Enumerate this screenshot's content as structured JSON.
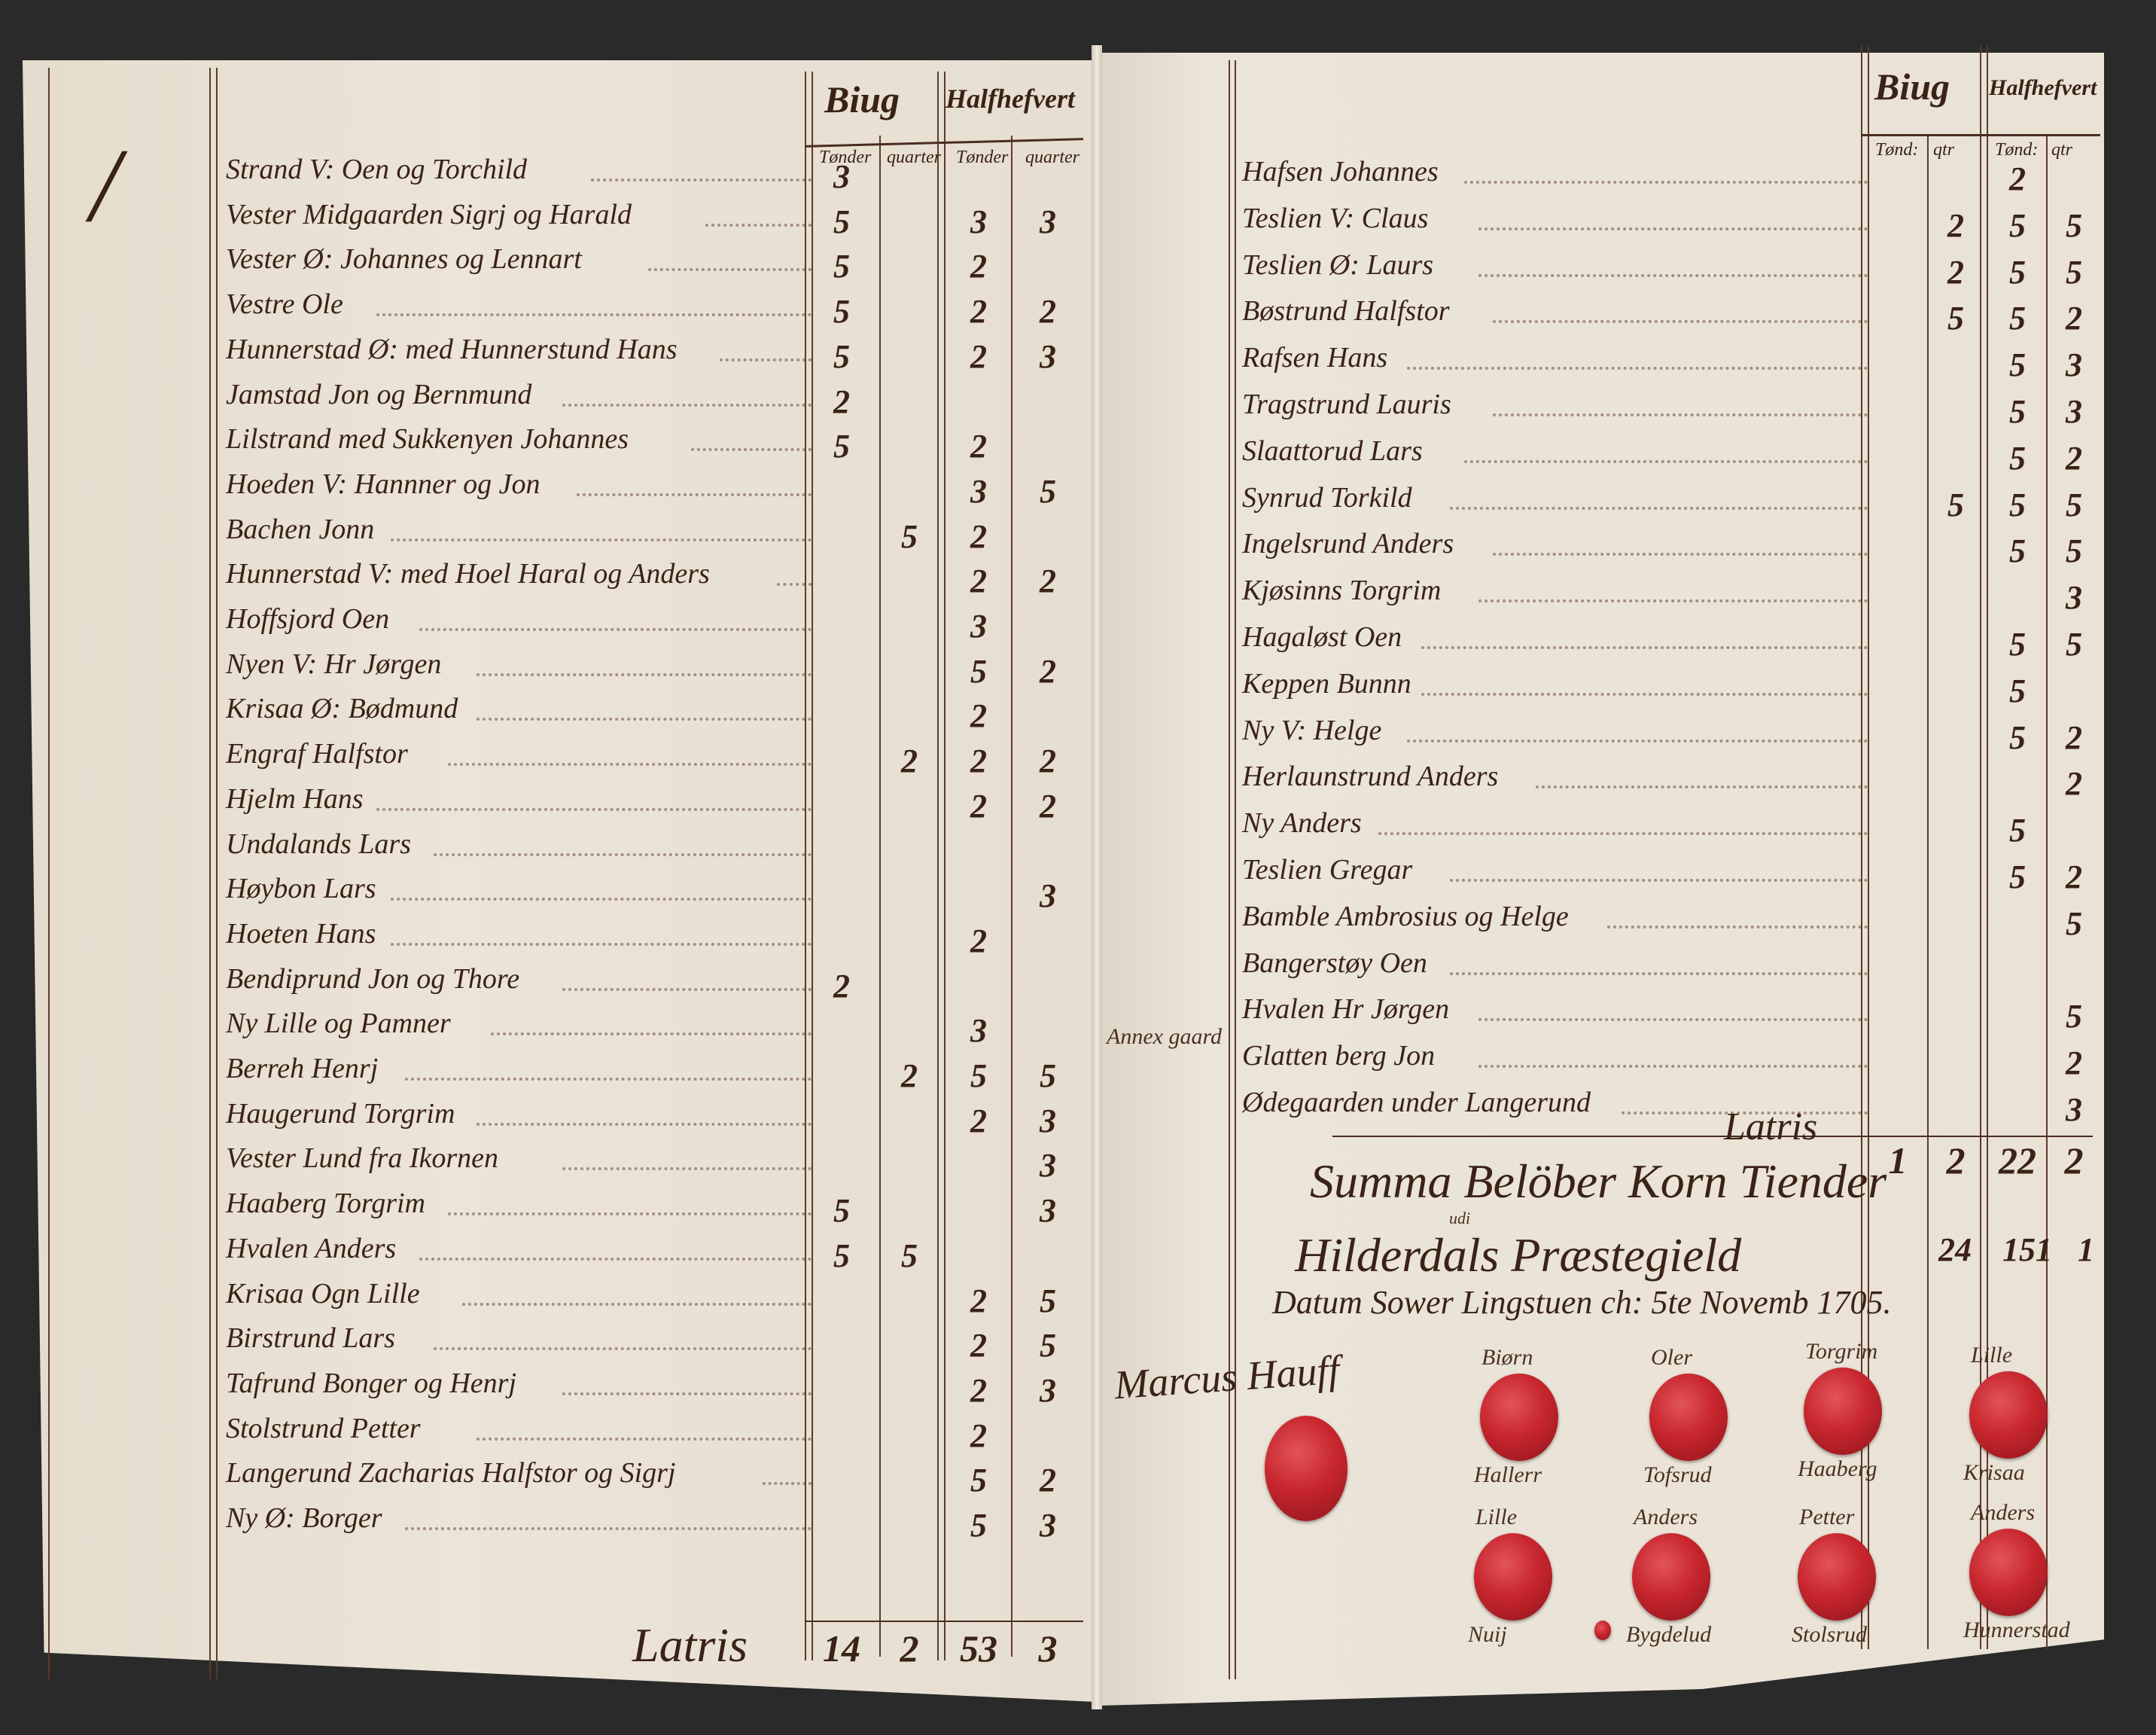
{
  "left_page": {
    "header": {
      "group1": "Biug",
      "group2": "Halfhefvert",
      "cols": [
        "Tønder",
        "quarter",
        "Tønder",
        "quarter"
      ]
    },
    "margin_mark": "/",
    "rows": [
      {
        "name": "Strand V: Oen og Torchild",
        "v": [
          "3",
          "",
          "",
          ""
        ]
      },
      {
        "name": "Vester Midgaarden Sigrj og Harald",
        "v": [
          "5",
          "",
          "3",
          "3"
        ]
      },
      {
        "name": "Vester Ø: Johannes og Lennart",
        "v": [
          "5",
          "",
          "2",
          ""
        ]
      },
      {
        "name": "Vestre Ole",
        "v": [
          "5",
          "",
          "2",
          "2"
        ]
      },
      {
        "name": "Hunnerstad Ø: med Hunnerstund Hans",
        "v": [
          "5",
          "",
          "2",
          "3"
        ]
      },
      {
        "name": "Jamstad Jon og Bernmund",
        "v": [
          "2",
          "",
          "",
          ""
        ]
      },
      {
        "name": "Lilstrand med Sukkenyen Johannes",
        "v": [
          "5",
          "",
          "2",
          ""
        ]
      },
      {
        "name": "Hoeden V: Hannner og Jon",
        "v": [
          "",
          "",
          "3",
          "5"
        ]
      },
      {
        "name": "Bachen Jonn",
        "v": [
          "",
          "5",
          "2",
          ""
        ]
      },
      {
        "name": "Hunnerstad V: med Hoel Haral og Anders",
        "v": [
          "",
          "",
          "2",
          "2"
        ]
      },
      {
        "name": "Hoffsjord Oen",
        "v": [
          "",
          "",
          "3",
          ""
        ]
      },
      {
        "name": "Nyen V: Hr Jørgen",
        "v": [
          "",
          "",
          "5",
          "2"
        ]
      },
      {
        "name": "Krisaa Ø: Bødmund",
        "v": [
          "",
          "",
          "2",
          ""
        ]
      },
      {
        "name": "Engraf Halfstor",
        "v": [
          "",
          "2",
          "2",
          "2"
        ]
      },
      {
        "name": "Hjelm Hans",
        "v": [
          "",
          "",
          "2",
          "2"
        ]
      },
      {
        "name": "Undalands Lars",
        "v": [
          "",
          "",
          "",
          ""
        ]
      },
      {
        "name": "Høybon Lars",
        "v": [
          "",
          "",
          "",
          "3"
        ]
      },
      {
        "name": "Hoeten Hans",
        "v": [
          "",
          "",
          "2",
          ""
        ]
      },
      {
        "name": "Bendiprund Jon og Thore",
        "v": [
          "2",
          "",
          "",
          ""
        ]
      },
      {
        "name": "Ny Lille og Pamner",
        "v": [
          "",
          "",
          "3",
          ""
        ]
      },
      {
        "name": "Berreh Henrj",
        "v": [
          "",
          "2",
          "5",
          "5"
        ]
      },
      {
        "name": "Haugerund Torgrim",
        "v": [
          "",
          "",
          "2",
          "3"
        ]
      },
      {
        "name": "Vester Lund fra Ikornen",
        "v": [
          "",
          "",
          "",
          "3"
        ]
      },
      {
        "name": "Haaberg Torgrim",
        "v": [
          "5",
          "",
          "",
          "3"
        ]
      },
      {
        "name": "Hvalen Anders",
        "v": [
          "5",
          "5",
          "",
          ""
        ]
      },
      {
        "name": "Krisaa Ogn Lille",
        "v": [
          "",
          "",
          "2",
          "5"
        ]
      },
      {
        "name": "Birstrund Lars",
        "v": [
          "",
          "",
          "2",
          "5"
        ]
      },
      {
        "name": "Tafrund Bonger og Henrj",
        "v": [
          "",
          "",
          "2",
          "3"
        ]
      },
      {
        "name": "Stolstrund Petter",
        "v": [
          "",
          "",
          "2",
          ""
        ]
      },
      {
        "name": "Langerund Zacharias Halfstor og Sigrj",
        "v": [
          "",
          "",
          "5",
          "2"
        ]
      },
      {
        "name": "Ny Ø: Borger",
        "v": [
          "",
          "",
          "5",
          "3"
        ]
      }
    ],
    "total": {
      "label": "Latris",
      "v": [
        "14",
        "2",
        "53",
        "3"
      ]
    }
  },
  "right_page": {
    "header": {
      "group1": "Biug",
      "group2": "Halfhefvert",
      "cols": [
        "Tønd:",
        "qtr",
        "Tønd:",
        "qtr"
      ]
    },
    "annex_note": "Annex gaard",
    "rows": [
      {
        "name": "Hafsen Johannes",
        "v": [
          "",
          "",
          "2",
          ""
        ]
      },
      {
        "name": "Teslien V: Claus",
        "v": [
          "",
          "2",
          "5",
          "5"
        ]
      },
      {
        "name": "Teslien Ø: Laurs",
        "v": [
          "",
          "2",
          "5",
          "5"
        ]
      },
      {
        "name": "Bøstrund Halfstor",
        "v": [
          "",
          "5",
          "5",
          "2"
        ]
      },
      {
        "name": "Rafsen Hans",
        "v": [
          "",
          "",
          "5",
          "3"
        ]
      },
      {
        "name": "Tragstrund Lauris",
        "v": [
          "",
          "",
          "5",
          "3"
        ]
      },
      {
        "name": "Slaattorud Lars",
        "v": [
          "",
          "",
          "5",
          "2"
        ]
      },
      {
        "name": "Synrud Torkild",
        "v": [
          "",
          "5",
          "5",
          "5"
        ]
      },
      {
        "name": "Ingelsrund Anders",
        "v": [
          "",
          "",
          "5",
          "5"
        ]
      },
      {
        "name": "Kjøsinns Torgrim",
        "v": [
          "",
          "",
          "",
          "3"
        ]
      },
      {
        "name": "Hagaløst Oen",
        "v": [
          "",
          "",
          "5",
          "5"
        ]
      },
      {
        "name": "Keppen Bunnn",
        "v": [
          "",
          "",
          "5",
          ""
        ]
      },
      {
        "name": "Ny V: Helge",
        "v": [
          "",
          "",
          "5",
          "2"
        ]
      },
      {
        "name": "Herlaunstrund Anders",
        "v": [
          "",
          "",
          "",
          "2"
        ]
      },
      {
        "name": "Ny Anders",
        "v": [
          "",
          "",
          "5",
          ""
        ]
      },
      {
        "name": "Teslien Gregar",
        "v": [
          "",
          "",
          "5",
          "2"
        ]
      },
      {
        "name": "Bamble Ambrosius og Helge",
        "v": [
          "",
          "",
          "",
          "5"
        ]
      },
      {
        "name": "Bangerstøy Oen",
        "v": [
          "",
          "",
          "",
          ""
        ]
      },
      {
        "name": "Hvalen Hr Jørgen",
        "v": [
          "",
          "",
          "",
          "5"
        ]
      },
      {
        "name": "Glatten berg Jon",
        "v": [
          "",
          "",
          "",
          "2"
        ]
      },
      {
        "name": "Ødegaarden under Langerund",
        "v": [
          "",
          "",
          "",
          "3"
        ]
      }
    ],
    "total": {
      "label": "Latris",
      "v": [
        "1",
        "2",
        "22",
        "2"
      ]
    },
    "summa": {
      "line1": "Summa Belöber Korn Tiender",
      "udi": "udi",
      "line2": "Hilderdals Præstegield",
      "values": [
        "24",
        "151",
        "1"
      ],
      "datum": "Datum Sower Lingstuen ch: 5te Novemb 1705."
    },
    "signature": "Marcus Hauff",
    "seals": [
      {
        "above": "Biørn",
        "below": "Hallerr"
      },
      {
        "above": "Oler",
        "below": "Tofsrud"
      },
      {
        "above": "Torgrim",
        "below": "Haaberg"
      },
      {
        "above": "Lille",
        "below": "Krisaa"
      },
      {
        "above": "Lille",
        "below": "Nuij"
      },
      {
        "above": "Anders",
        "below": "Bygdelud"
      },
      {
        "above": "Petter",
        "below": "Stolsrud"
      },
      {
        "above": "Anders",
        "below": "Hunnerstad"
      }
    ],
    "seal_color": "#c8262e",
    "ink_color": "#3a2216"
  }
}
